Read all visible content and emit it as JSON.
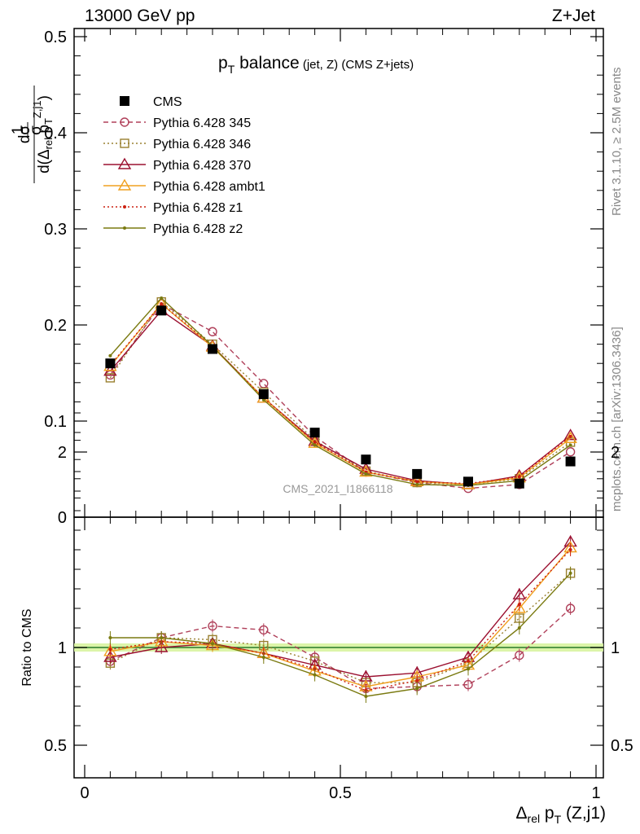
{
  "header": {
    "left": "13000 GeV pp",
    "right": "Z+Jet"
  },
  "side": {
    "rivet": "Rivet 3.1.10, ≥ 2.5M events",
    "mcplots": "mcplots.cern.ch [arXiv:1306.3436]"
  },
  "watermark": "CMS_2021_I1866118",
  "title": {
    "main": "p",
    "main_sub": "T",
    "main_rest": " balance",
    "small": " (jet, Z) (CMS Z+jets)"
  },
  "axes": {
    "ylabel_top": "1/σ dσ/d(Δrel pT^{Z,j1})",
    "ylabel_ratio": "Ratio to CMS",
    "xlabel": "Δrel pT (Z,j1)"
  },
  "colors": {
    "cms": "#000000",
    "s345": "#b0405a",
    "s346": "#9a8030",
    "s370": "#9b1030",
    "ambt1": "#f0a020",
    "z1": "#cc2010",
    "z2": "#7a7a10",
    "band": "#c8f070",
    "refline": "#2a7a2a"
  },
  "chart_data": {
    "type": "line",
    "x": [
      0.05,
      0.15,
      0.25,
      0.35,
      0.45,
      0.55,
      0.65,
      0.75,
      0.85,
      0.95
    ],
    "xlim": [
      0,
      1
    ],
    "ylim_main": [
      0,
      0.5
    ],
    "ylim_ratio": [
      0.3,
      2.3
    ],
    "xticks": [
      "0",
      "0.5",
      "1"
    ],
    "yticks_main": [
      "0",
      "0.1",
      "0.2",
      "0.3",
      "0.4",
      "0.5"
    ],
    "yticks_ratio": [
      "0.5",
      "1",
      "2"
    ],
    "series": [
      {
        "key": "cms",
        "name": "CMS",
        "marker": "square",
        "dash": "",
        "values": [
          0.16,
          0.215,
          0.175,
          0.128,
          0.088,
          0.06,
          0.045,
          0.037,
          0.035,
          0.058
        ],
        "ratio": [
          1,
          1,
          1,
          1,
          1,
          1,
          1,
          1,
          1,
          1
        ]
      },
      {
        "key": "s345",
        "name": "Pythia 6.428 345",
        "marker": "circle",
        "dash": "6,4",
        "values": [
          0.148,
          0.222,
          0.193,
          0.139,
          0.084,
          0.047,
          0.036,
          0.03,
          0.034,
          0.068
        ],
        "ratio": [
          0.93,
          1.05,
          1.11,
          1.09,
          0.95,
          0.79,
          0.8,
          0.81,
          0.96,
          1.2
        ]
      },
      {
        "key": "s346",
        "name": "Pythia 6.428 346",
        "marker": "opensquare",
        "dash": "2,3",
        "values": [
          0.145,
          0.224,
          0.18,
          0.13,
          0.08,
          0.048,
          0.036,
          0.034,
          0.04,
          0.078
        ],
        "ratio": [
          0.92,
          1.05,
          1.04,
          1.01,
          0.93,
          0.82,
          0.82,
          0.92,
          1.15,
          1.38
        ]
      },
      {
        "key": "s370",
        "name": "Pythia 6.428 370",
        "marker": "triangle",
        "dash": "",
        "values": [
          0.152,
          0.215,
          0.178,
          0.124,
          0.079,
          0.05,
          0.038,
          0.034,
          0.043,
          0.085
        ],
        "ratio": [
          0.95,
          1.0,
          1.02,
          0.97,
          0.91,
          0.85,
          0.87,
          0.95,
          1.27,
          1.54
        ]
      },
      {
        "key": "ambt1",
        "name": "Pythia 6.428 ambt1",
        "marker": "triangle",
        "dash": "",
        "values": [
          0.157,
          0.222,
          0.177,
          0.124,
          0.077,
          0.047,
          0.037,
          0.034,
          0.041,
          0.082
        ],
        "ratio": [
          0.98,
          1.03,
          1.01,
          0.97,
          0.88,
          0.8,
          0.85,
          0.91,
          1.2,
          1.51
        ]
      },
      {
        "key": "z1",
        "name": "Pythia 6.428 z1",
        "marker": "dot",
        "dash": "2,3",
        "values": [
          0.158,
          0.222,
          0.178,
          0.124,
          0.078,
          0.047,
          0.037,
          0.035,
          0.042,
          0.084
        ],
        "ratio": [
          0.99,
          1.03,
          1.02,
          0.97,
          0.89,
          0.78,
          0.83,
          0.93,
          1.22,
          1.5
        ]
      },
      {
        "key": "z2",
        "name": "Pythia 6.428 z2",
        "marker": "dot",
        "dash": "",
        "values": [
          0.168,
          0.228,
          0.178,
          0.122,
          0.075,
          0.045,
          0.034,
          0.033,
          0.038,
          0.075
        ],
        "ratio": [
          1.05,
          1.05,
          1.02,
          0.95,
          0.86,
          0.75,
          0.79,
          0.89,
          1.1,
          1.38
        ]
      }
    ]
  }
}
